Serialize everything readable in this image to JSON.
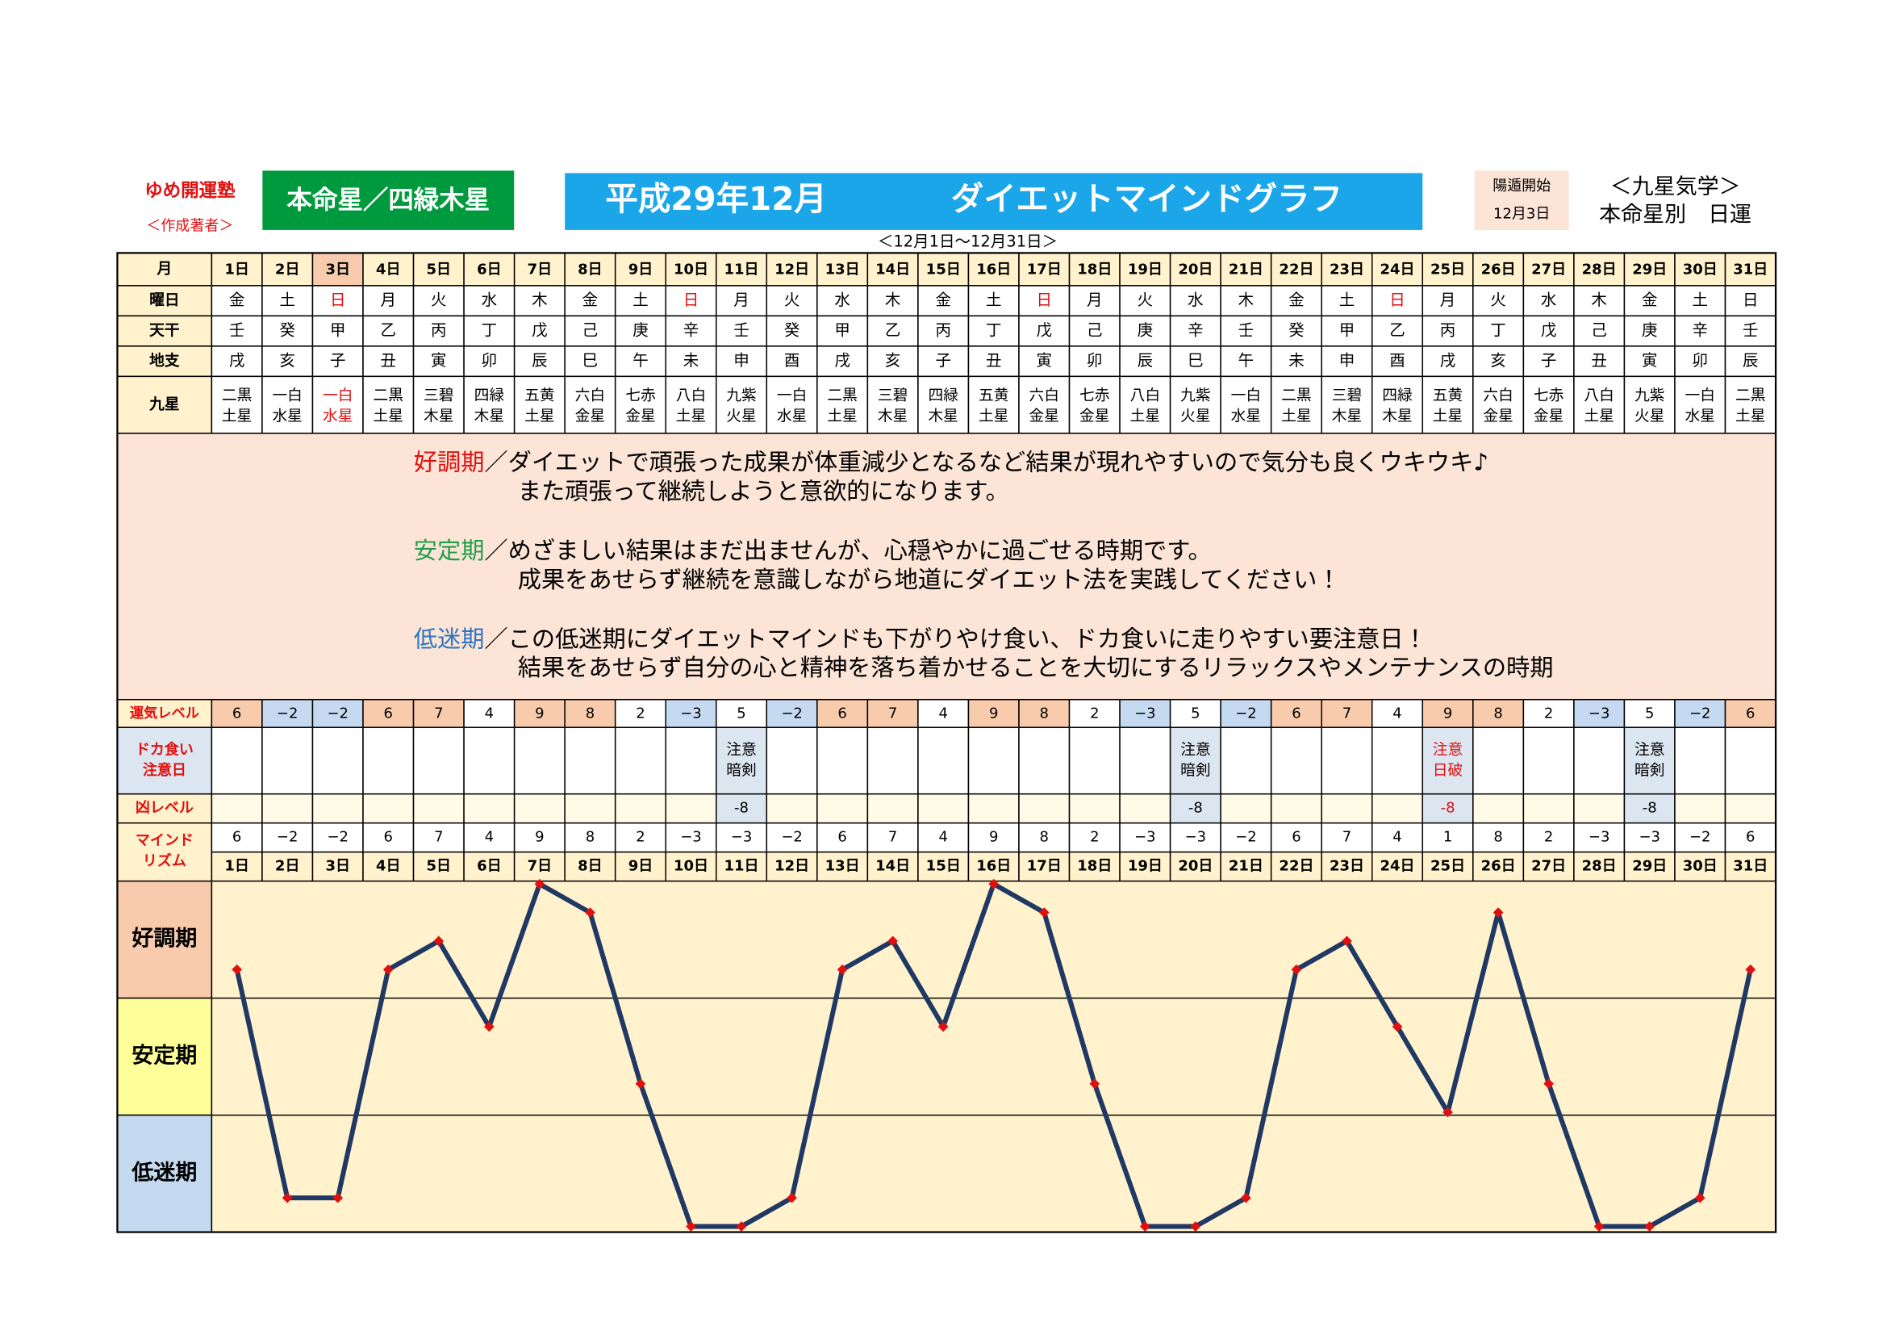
{
  "header": {
    "school": "ゆめ開運塾",
    "author": "＜作成著者＞",
    "honmei": "本命星／四緑木星",
    "era_month": "平成29年12月",
    "title": "ダイエットマインドグラフ",
    "yoton_label": "陽遁開始",
    "yoton_date": "12月3日",
    "kigaku": "＜九星気学＞",
    "subtitle": "本命星別　日運",
    "range": "＜12月1日～12月31日＞"
  },
  "table": {
    "month_label": "月",
    "weekday_label": "曜日",
    "tenkan_label": "天干",
    "chishi_label": "地支",
    "kyusei_label": "九星",
    "days": [
      "1日",
      "2日",
      "3日",
      "4日",
      "5日",
      "6日",
      "7日",
      "8日",
      "9日",
      "10日",
      "11日",
      "12日",
      "13日",
      "14日",
      "15日",
      "16日",
      "17日",
      "18日",
      "19日",
      "20日",
      "21日",
      "22日",
      "23日",
      "24日",
      "25日",
      "26日",
      "27日",
      "28日",
      "29日",
      "30日",
      "31日"
    ],
    "weekdays": [
      "金",
      "土",
      "日",
      "月",
      "火",
      "水",
      "木",
      "金",
      "土",
      "日",
      "月",
      "火",
      "水",
      "木",
      "金",
      "土",
      "日",
      "月",
      "火",
      "水",
      "木",
      "金",
      "土",
      "日",
      "月",
      "火",
      "水",
      "木",
      "金",
      "土",
      "日"
    ],
    "tenkan": [
      "壬",
      "癸",
      "甲",
      "乙",
      "丙",
      "丁",
      "戊",
      "己",
      "庚",
      "辛",
      "壬",
      "癸",
      "甲",
      "乙",
      "丙",
      "丁",
      "戊",
      "己",
      "庚",
      "辛",
      "壬",
      "癸",
      "甲",
      "乙",
      "丙",
      "丁",
      "戊",
      "己",
      "庚",
      "辛",
      "壬"
    ],
    "chishi": [
      "戌",
      "亥",
      "子",
      "丑",
      "寅",
      "卯",
      "辰",
      "巳",
      "午",
      "未",
      "申",
      "酉",
      "戌",
      "亥",
      "子",
      "丑",
      "寅",
      "卯",
      "辰",
      "巳",
      "午",
      "未",
      "申",
      "酉",
      "戌",
      "亥",
      "子",
      "丑",
      "寅",
      "卯",
      "辰"
    ],
    "kyusei": [
      [
        "二黒",
        "土星"
      ],
      [
        "一白",
        "水星"
      ],
      [
        "一白",
        "水星"
      ],
      [
        "二黒",
        "土星"
      ],
      [
        "三碧",
        "木星"
      ],
      [
        "四緑",
        "木星"
      ],
      [
        "五黄",
        "土星"
      ],
      [
        "六白",
        "金星"
      ],
      [
        "七赤",
        "金星"
      ],
      [
        "八白",
        "土星"
      ],
      [
        "九紫",
        "火星"
      ],
      [
        "一白",
        "水星"
      ],
      [
        "二黒",
        "土星"
      ],
      [
        "三碧",
        "木星"
      ],
      [
        "四緑",
        "木星"
      ],
      [
        "五黄",
        "土星"
      ],
      [
        "六白",
        "金星"
      ],
      [
        "七赤",
        "金星"
      ],
      [
        "八白",
        "土星"
      ],
      [
        "九紫",
        "火星"
      ],
      [
        "一白",
        "水星"
      ],
      [
        "二黒",
        "土星"
      ],
      [
        "三碧",
        "木星"
      ],
      [
        "四緑",
        "木星"
      ],
      [
        "五黄",
        "土星"
      ],
      [
        "六白",
        "金星"
      ],
      [
        "七赤",
        "金星"
      ],
      [
        "八白",
        "土星"
      ],
      [
        "九紫",
        "火星"
      ],
      [
        "一白",
        "水星"
      ],
      [
        "二黒",
        "土星"
      ]
    ]
  },
  "description": [
    {
      "term": "好調期",
      "lines": [
        "／ダイエットで頑張った成果が体重減少となるなど結果が現れやすいので気分も良くウキウキ♪",
        "また頑張って継続しようと意欲的になります。"
      ]
    },
    {
      "term": "安定期",
      "lines": [
        "／めざましい結果はまだ出ませんが、心穏やかに過ごせる時期です。",
        "成果をあせらず継続を意識しながら地道にダイエット法を実践してください！"
      ]
    },
    {
      "term": "低迷期",
      "lines": [
        "／この低迷期にダイエットマインドも下がりやけ食い、ドカ食いに走りやすい要注意日！",
        "結果をあせらず自分の心と精神を落ち着かせることを大切にするリラックスやメンテナンスの時期"
      ]
    }
  ],
  "fortune": {
    "label": "運気レベル",
    "values": [
      6,
      -2,
      -2,
      6,
      7,
      4,
      9,
      8,
      2,
      -3,
      5,
      -2,
      6,
      7,
      4,
      9,
      8,
      2,
      -3,
      5,
      -2,
      6,
      7,
      4,
      9,
      8,
      2,
      -3,
      5,
      -2,
      6
    ],
    "value_labels": [
      "6",
      "−2",
      "−2",
      "6",
      "7",
      "4",
      "9",
      "8",
      "2",
      "−3",
      "5",
      "−2",
      "6",
      "7",
      "4",
      "9",
      "8",
      "2",
      "−3",
      "5",
      "−2",
      "6",
      "7",
      "4",
      "9",
      "8",
      "2",
      "−3",
      "5",
      "−2",
      "6"
    ]
  },
  "caution": {
    "label": [
      "ドカ食い",
      "注意日"
    ],
    "cells": [
      null,
      null,
      null,
      null,
      null,
      null,
      null,
      null,
      null,
      null,
      [
        "注意",
        "暗剣"
      ],
      null,
      null,
      null,
      null,
      null,
      null,
      null,
      null,
      [
        "注意",
        "暗剣"
      ],
      null,
      null,
      null,
      null,
      [
        "注意",
        "日破"
      ],
      null,
      null,
      null,
      [
        "注意",
        "暗剣"
      ],
      null,
      null
    ]
  },
  "danger": {
    "label": "凶レベル",
    "values": [
      null,
      null,
      null,
      null,
      null,
      null,
      null,
      null,
      null,
      null,
      -8,
      null,
      null,
      null,
      null,
      null,
      null,
      null,
      null,
      -8,
      null,
      null,
      null,
      null,
      -8,
      null,
      null,
      null,
      -8,
      null,
      null
    ]
  },
  "chart_data": {
    "type": "line",
    "label": [
      "マインド",
      "リズム"
    ],
    "categories": [
      "1日",
      "2日",
      "3日",
      "4日",
      "5日",
      "6日",
      "7日",
      "8日",
      "9日",
      "10日",
      "11日",
      "12日",
      "13日",
      "14日",
      "15日",
      "16日",
      "17日",
      "18日",
      "19日",
      "20日",
      "21日",
      "22日",
      "23日",
      "24日",
      "25日",
      "26日",
      "27日",
      "28日",
      "29日",
      "30日",
      "31日"
    ],
    "values": [
      6,
      -2,
      -2,
      6,
      7,
      4,
      9,
      8,
      2,
      -3,
      -3,
      -2,
      6,
      7,
      4,
      9,
      8,
      2,
      -3,
      -3,
      -2,
      6,
      7,
      4,
      1,
      8,
      2,
      -3,
      -3,
      -2,
      6
    ],
    "value_labels": [
      "6",
      "−2",
      "−2",
      "6",
      "7",
      "4",
      "9",
      "8",
      "2",
      "−3",
      "−3",
      "−2",
      "6",
      "7",
      "4",
      "9",
      "8",
      "2",
      "−3",
      "−3",
      "−2",
      "6",
      "7",
      "4",
      "1",
      "8",
      "2",
      "−3",
      "−3",
      "−2",
      "6"
    ],
    "ylim": [
      -3.2,
      9.1
    ],
    "bands": [
      "好調期",
      "安定期",
      "低迷期"
    ],
    "color": "#1f3864",
    "marker_color": "#e01010"
  }
}
